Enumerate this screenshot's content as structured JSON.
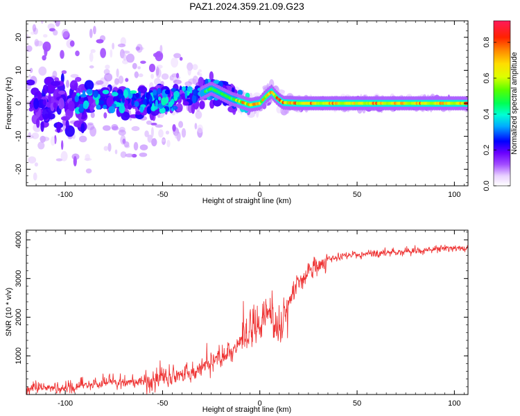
{
  "title": "PAZ1.2024.359.21.09.G23",
  "chart_data": [
    {
      "type": "heatmap",
      "title": "PAZ1.2024.359.21.09.G23",
      "xlabel": "Height of straight line (km)",
      "ylabel": "Frequency (Hz)",
      "xlim": [
        -120,
        107
      ],
      "ylim": [
        -25,
        25
      ],
      "xticks": [
        -100,
        -50,
        0,
        50,
        100
      ],
      "yticks": [
        -20,
        -10,
        0,
        10,
        20
      ],
      "colorbar": {
        "label": "Normalized spectral amplitude",
        "range": [
          0,
          0.92
        ],
        "ticks": [
          0.0,
          0.2,
          0.4,
          0.6,
          0.8
        ],
        "tick_labels": [
          "0.0",
          "0.2",
          "0.4",
          "0.6",
          "0.8"
        ]
      },
      "ridge": {
        "x": [
          -120,
          -100,
          -80,
          -60,
          -45,
          -35,
          -30,
          -25,
          -20,
          -15,
          -10,
          -5,
          0,
          3,
          6,
          9,
          12,
          20,
          40,
          60,
          80,
          107
        ],
        "freq": [
          0,
          0.5,
          1,
          0.5,
          1,
          2,
          3,
          4.5,
          3,
          1.5,
          0.5,
          -0.5,
          0,
          2,
          3.5,
          1.5,
          0.2,
          0,
          0,
          0,
          0,
          0
        ]
      }
    },
    {
      "type": "line",
      "xlabel": "Height of straight line (km)",
      "ylabel": "SNR (10 * v/v)",
      "xlim": [
        -120,
        107
      ],
      "ylim": [
        0,
        4250
      ],
      "xticks": [
        -100,
        -50,
        0,
        50,
        100
      ],
      "yticks": [
        1000,
        2000,
        3000,
        4000
      ],
      "color": "#ee3333",
      "trend": {
        "x": [
          -120,
          -100,
          -80,
          -60,
          -50,
          -40,
          -30,
          -20,
          -10,
          -5,
          0,
          5,
          10,
          15,
          20,
          25,
          30,
          35,
          40,
          50,
          60,
          70,
          80,
          90,
          100,
          107
        ],
        "y": [
          120,
          170,
          280,
          320,
          400,
          500,
          700,
          950,
          1300,
          1600,
          1900,
          2200,
          1700,
          2400,
          2900,
          3150,
          3350,
          3480,
          3560,
          3620,
          3660,
          3690,
          3720,
          3760,
          3790,
          3800
        ]
      }
    }
  ]
}
